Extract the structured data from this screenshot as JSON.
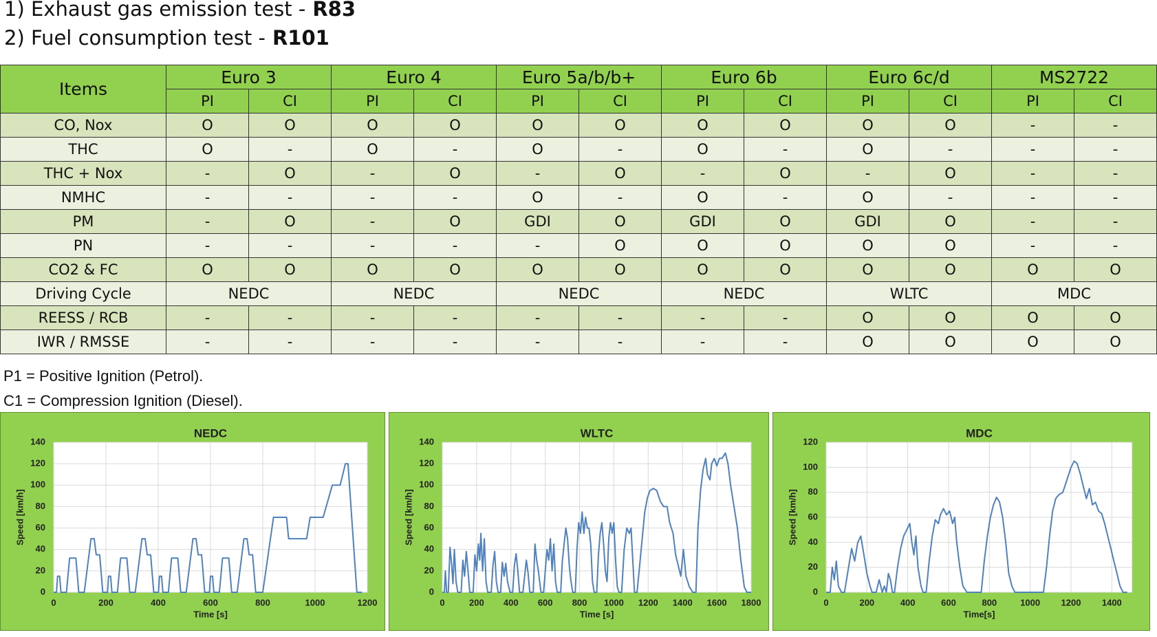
{
  "header": {
    "lines": [
      {
        "text": "1) Exhaust gas emission test -",
        "bold": "R83"
      },
      {
        "text": "2) Fuel consumption test -",
        "bold": "R101"
      }
    ]
  },
  "table": {
    "items_header": "Items",
    "groups": [
      {
        "name": "Euro 3",
        "sub": [
          "PI",
          "CI"
        ]
      },
      {
        "name": "Euro 4",
        "sub": [
          "PI",
          "CI"
        ]
      },
      {
        "name": "Euro 5a/b/b+",
        "sub": [
          "PI",
          "CI"
        ]
      },
      {
        "name": "Euro 6b",
        "sub": [
          "PI",
          "CI"
        ]
      },
      {
        "name": "Euro 6c/d",
        "sub": [
          "PI",
          "CI"
        ]
      },
      {
        "name": "MS2722",
        "sub": [
          "PI",
          "CI"
        ]
      }
    ],
    "rows": [
      {
        "item": "CO, Nox",
        "cells": [
          "O",
          "O",
          "O",
          "O",
          "O",
          "O",
          "O",
          "O",
          "O",
          "O",
          "-",
          "-"
        ]
      },
      {
        "item": "THC",
        "cells": [
          "O",
          "-",
          "O",
          "-",
          "O",
          "-",
          "O",
          "-",
          "O",
          "-",
          "-",
          "-"
        ]
      },
      {
        "item": "THC + Nox",
        "cells": [
          "-",
          "O",
          "-",
          "O",
          "-",
          "O",
          "-",
          "O",
          "-",
          "O",
          "-",
          "-"
        ]
      },
      {
        "item": "NMHC",
        "cells": [
          "-",
          "-",
          "-",
          "-",
          "O",
          "-",
          "O",
          "-",
          "O",
          "-",
          "-",
          "-"
        ]
      },
      {
        "item": "PM",
        "cells": [
          "-",
          "O",
          "-",
          "O",
          "GDI",
          "O",
          "GDI",
          "O",
          "GDI",
          "O",
          "-",
          "-"
        ]
      },
      {
        "item": "PN",
        "cells": [
          "-",
          "-",
          "-",
          "-",
          "-",
          "O",
          "O",
          "O",
          "O",
          "O",
          "-",
          "-"
        ]
      },
      {
        "item": "CO2 & FC",
        "cells": [
          "O",
          "O",
          "O",
          "O",
          "O",
          "O",
          "O",
          "O",
          "O",
          "O",
          "O",
          "O"
        ]
      },
      {
        "item": "Driving Cycle",
        "cells": [
          "NEDC",
          "NEDC",
          "NEDC",
          "NEDC",
          "WLTC",
          "MDC"
        ]
      },
      {
        "item": "REESS / RCB",
        "cells": [
          "-",
          "-",
          "-",
          "-",
          "-",
          "-",
          "-",
          "-",
          "O",
          "O",
          "O",
          "O"
        ]
      },
      {
        "item": "IWR / RMSSE",
        "cells": [
          "-",
          "-",
          "-",
          "-",
          "-",
          "-",
          "-",
          "-",
          "O",
          "O",
          "O",
          "O"
        ]
      }
    ]
  },
  "notes": [
    "P1 = Positive Ignition (Petrol).",
    "C1 = Compression Ignition (Diesel)."
  ],
  "chart_data": [
    {
      "type": "line",
      "title": "NEDC",
      "x_label": "Time [s]",
      "y_label": "Speed [km/h]",
      "xlim": [
        0,
        1200
      ],
      "xticks": [
        0,
        200,
        400,
        600,
        800,
        1000,
        1200
      ],
      "ylim": [
        0,
        140
      ],
      "yticks": [
        0,
        20,
        40,
        60,
        80,
        100,
        120,
        140
      ],
      "grid": true,
      "x": [
        0,
        11,
        15,
        23,
        28,
        49,
        61,
        85,
        96,
        117,
        143,
        155,
        163,
        176,
        188,
        195,
        206,
        210,
        218,
        223,
        244,
        256,
        280,
        291,
        312,
        338,
        350,
        358,
        371,
        383,
        390,
        401,
        405,
        413,
        418,
        439,
        451,
        475,
        486,
        507,
        533,
        545,
        553,
        566,
        578,
        585,
        596,
        600,
        608,
        613,
        634,
        646,
        670,
        681,
        702,
        728,
        740,
        748,
        761,
        773,
        780,
        800,
        841,
        891,
        899,
        968,
        981,
        1031,
        1066,
        1096,
        1116,
        1126,
        1160,
        1180
      ],
      "series": [
        {
          "color": "#4f81bd",
          "values": [
            0,
            0,
            15,
            15,
            0,
            0,
            32,
            32,
            0,
            0,
            50,
            50,
            35,
            35,
            0,
            0,
            0,
            15,
            15,
            0,
            0,
            32,
            32,
            0,
            0,
            50,
            50,
            35,
            35,
            0,
            0,
            0,
            15,
            15,
            0,
            0,
            32,
            32,
            0,
            0,
            50,
            50,
            35,
            35,
            0,
            0,
            0,
            15,
            15,
            0,
            0,
            32,
            32,
            0,
            0,
            50,
            50,
            35,
            35,
            0,
            0,
            0,
            70,
            70,
            50,
            50,
            70,
            70,
            100,
            100,
            120,
            120,
            0,
            0
          ]
        }
      ]
    },
    {
      "type": "line",
      "title": "WLTC",
      "x_label": "Time [s]",
      "y_label": "Speed [km/h]",
      "xlim": [
        0,
        1800
      ],
      "xticks": [
        0,
        200,
        400,
        600,
        800,
        1000,
        1200,
        1400,
        1600,
        1800
      ],
      "ylim": [
        0,
        140
      ],
      "yticks": [
        0,
        20,
        40,
        60,
        80,
        100,
        120,
        140
      ],
      "grid": true,
      "x": [
        0,
        12,
        18,
        25,
        35,
        45,
        55,
        62,
        70,
        80,
        90,
        110,
        120,
        130,
        140,
        150,
        160,
        180,
        190,
        200,
        210,
        218,
        225,
        235,
        245,
        255,
        265,
        285,
        295,
        305,
        315,
        325,
        340,
        350,
        360,
        370,
        380,
        395,
        410,
        420,
        430,
        440,
        450,
        470,
        480,
        490,
        500,
        510,
        530,
        540,
        550,
        560,
        575,
        590,
        600,
        610,
        620,
        630,
        640,
        650,
        660,
        670,
        690,
        700,
        710,
        720,
        730,
        740,
        750,
        760,
        775,
        785,
        795,
        805,
        815,
        825,
        835,
        845,
        855,
        865,
        875,
        885,
        900,
        910,
        920,
        930,
        940,
        950,
        960,
        970,
        980,
        990,
        1000,
        1010,
        1020,
        1030,
        1045,
        1060,
        1075,
        1090,
        1100,
        1110,
        1120,
        1135,
        1150,
        1165,
        1180,
        1195,
        1210,
        1230,
        1250,
        1270,
        1290,
        1310,
        1325,
        1345,
        1360,
        1375,
        1390,
        1405,
        1420,
        1440,
        1460,
        1478,
        1490,
        1505,
        1520,
        1535,
        1545,
        1560,
        1570,
        1585,
        1600,
        1615,
        1630,
        1650,
        1665,
        1680,
        1700,
        1720,
        1740,
        1760,
        1775,
        1800
      ],
      "series": [
        {
          "color": "#4f81bd",
          "values": [
            0,
            0,
            20,
            0,
            0,
            42,
            25,
            8,
            40,
            10,
            0,
            0,
            30,
            15,
            38,
            20,
            0,
            0,
            35,
            20,
            45,
            30,
            55,
            20,
            50,
            10,
            0,
            0,
            25,
            38,
            10,
            0,
            0,
            28,
            15,
            27,
            10,
            0,
            0,
            25,
            36,
            20,
            0,
            0,
            15,
            30,
            18,
            0,
            0,
            45,
            30,
            20,
            0,
            0,
            20,
            40,
            30,
            50,
            20,
            45,
            10,
            0,
            0,
            30,
            45,
            60,
            50,
            25,
            10,
            0,
            0,
            40,
            65,
            55,
            75,
            55,
            70,
            60,
            60,
            45,
            10,
            0,
            0,
            35,
            55,
            65,
            45,
            20,
            10,
            50,
            65,
            55,
            65,
            30,
            5,
            0,
            0,
            40,
            60,
            55,
            60,
            30,
            0,
            0,
            25,
            50,
            75,
            88,
            95,
            97,
            95,
            85,
            80,
            80,
            65,
            55,
            35,
            25,
            15,
            40,
            15,
            5,
            0,
            0,
            60,
            95,
            115,
            125,
            110,
            105,
            120,
            125,
            118,
            125,
            125,
            130,
            120,
            100,
            80,
            60,
            30,
            5,
            0,
            0
          ]
        }
      ]
    },
    {
      "type": "line",
      "title": "MDC",
      "x_label": "Time[s]",
      "y_label": "Speed [km/h]",
      "xlim": [
        0,
        1500
      ],
      "xticks": [
        0,
        200,
        400,
        600,
        800,
        1000,
        1200,
        1400
      ],
      "ylim": [
        0,
        120
      ],
      "yticks": [
        0,
        20,
        40,
        60,
        80,
        100,
        120
      ],
      "grid": true,
      "x": [
        0,
        20,
        30,
        40,
        50,
        60,
        75,
        90,
        110,
        125,
        140,
        155,
        170,
        185,
        200,
        215,
        225,
        245,
        260,
        275,
        285,
        295,
        305,
        315,
        325,
        335,
        350,
        365,
        380,
        395,
        410,
        420,
        430,
        440,
        450,
        465,
        475,
        490,
        505,
        520,
        535,
        550,
        560,
        575,
        590,
        605,
        620,
        630,
        640,
        655,
        670,
        690,
        760,
        775,
        790,
        805,
        820,
        835,
        850,
        865,
        880,
        895,
        910,
        925,
        1065,
        1080,
        1095,
        1110,
        1125,
        1140,
        1160,
        1180,
        1200,
        1215,
        1230,
        1245,
        1260,
        1275,
        1290,
        1305,
        1320,
        1335,
        1350,
        1365,
        1380,
        1395,
        1410,
        1425,
        1440,
        1455,
        1475
      ],
      "series": [
        {
          "color": "#4f81bd",
          "values": [
            0,
            0,
            20,
            10,
            25,
            5,
            0,
            0,
            20,
            35,
            25,
            40,
            45,
            30,
            15,
            5,
            0,
            0,
            10,
            0,
            5,
            0,
            15,
            10,
            0,
            0,
            20,
            35,
            45,
            50,
            55,
            40,
            30,
            45,
            20,
            5,
            0,
            0,
            25,
            45,
            58,
            55,
            62,
            67,
            62,
            65,
            55,
            60,
            40,
            20,
            5,
            0,
            0,
            25,
            45,
            60,
            70,
            76,
            72,
            60,
            40,
            15,
            5,
            0,
            0,
            20,
            45,
            65,
            75,
            78,
            80,
            90,
            100,
            105,
            103,
            95,
            85,
            75,
            83,
            70,
            72,
            65,
            63,
            55,
            45,
            35,
            25,
            15,
            5,
            0,
            0
          ]
        }
      ]
    }
  ]
}
